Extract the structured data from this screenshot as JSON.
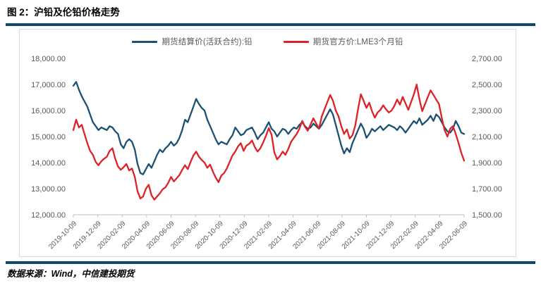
{
  "page": {
    "title": "图 2：沪铅及伦铅价格走势",
    "source_note": "数据来源：Wind，中信建投期货"
  },
  "colors": {
    "rule": "#14496F",
    "axis_text": "#595959",
    "axis_line": "#BFBFBF",
    "chart_border": "#D9D9D9",
    "series_left": "#1B5173",
    "series_right": "#DE2126"
  },
  "chart_data": {
    "type": "line",
    "title": "沪铅及伦铅价格走势",
    "grid": false,
    "legend_position": "top-center",
    "legend": [
      {
        "label": "期货结算价(活跃合约):铅",
        "color": "#1B5173",
        "axis": "left"
      },
      {
        "label": "期货官方价:LME3个月铅",
        "color": "#DE2126",
        "axis": "right"
      }
    ],
    "axes": {
      "y_left": {
        "min": 12000,
        "max": 18000,
        "step": 1000,
        "tick_labels": [
          "18,000.00",
          "17,000.00",
          "16,000.00",
          "15,000.00",
          "14,000.00",
          "13,000.00",
          "12,000.00"
        ]
      },
      "y_right": {
        "min": 1500,
        "max": 2700,
        "step": 200,
        "tick_labels": [
          "2,700.00",
          "2,500.00",
          "2,300.00",
          "2,100.00",
          "1,900.00",
          "1,700.00",
          "1,500.00"
        ]
      },
      "x": {
        "tick_labels": [
          "2019-10-09",
          "2019-12-09",
          "2020-02-09",
          "2020-04-09",
          "2020-06-09",
          "2020-08-09",
          "2020-10-09",
          "2020-12-09",
          "2021-02-09",
          "2021-04-09",
          "2021-06-09",
          "2021-08-09",
          "2021-10-09",
          "2021-12-09",
          "2022-02-09",
          "2022-04-09",
          "2022-06-09"
        ]
      }
    },
    "series": [
      {
        "name": "期货结算价(活跃合约):铅",
        "axis": "left",
        "color": "#1B5173",
        "values": [
          16950,
          17100,
          16800,
          16550,
          16350,
          16150,
          15850,
          15550,
          15400,
          15250,
          15350,
          15300,
          15250,
          15400,
          15350,
          15200,
          15100,
          14700,
          14550,
          14800,
          14900,
          14800,
          14500,
          13950,
          13600,
          13550,
          13750,
          13950,
          13800,
          14050,
          14300,
          14500,
          14400,
          14550,
          14650,
          14800,
          14650,
          14750,
          14950,
          15250,
          15650,
          15550,
          15850,
          16150,
          16450,
          16250,
          16100,
          16000,
          15650,
          15400,
          15150,
          14900,
          14700,
          14800,
          14750,
          14700,
          14900,
          15050,
          15350,
          15200,
          15050,
          15100,
          15250,
          15300,
          15350,
          15150,
          14900,
          15050,
          15150,
          15350,
          15550,
          15300,
          15200,
          15000,
          15150,
          15300,
          15250,
          15100,
          15250,
          15350,
          15300,
          15450,
          15550,
          15400,
          15300,
          15350,
          15500,
          15400,
          15300,
          15450,
          15650,
          15850,
          16050,
          15850,
          15450,
          15050,
          14650,
          14350,
          14550,
          14400,
          14750,
          15000,
          15250,
          15500,
          15300,
          14950,
          15100,
          15300,
          15200,
          15300,
          15400,
          15250,
          15350,
          15450,
          15400,
          15350,
          15250,
          15400,
          15300,
          15150,
          15300,
          15450,
          15600,
          15500,
          15700,
          15450,
          15550,
          15650,
          15800,
          15600,
          15850,
          15750,
          15550,
          15350,
          15200,
          15150,
          15300,
          15600,
          15400,
          15150,
          15100
        ]
      },
      {
        "name": "期货官方价:LME3个月铅",
        "axis": "right",
        "color": "#DE2126",
        "values": [
          2150,
          2230,
          2170,
          2190,
          2120,
          2050,
          1990,
          1960,
          1905,
          1880,
          1910,
          1930,
          1945,
          1990,
          2010,
          1930,
          1870,
          1845,
          1865,
          1890,
          1840,
          1855,
          1790,
          1680,
          1625,
          1640,
          1700,
          1730,
          1650,
          1615,
          1640,
          1665,
          1695,
          1710,
          1745,
          1790,
          1755,
          1780,
          1805,
          1845,
          1880,
          1850,
          1905,
          1955,
          1985,
          1945,
          1920,
          1900,
          1860,
          1885,
          1830,
          1785,
          1750,
          1800,
          1820,
          1855,
          1905,
          1955,
          1985,
          2025,
          2050,
          1990,
          2030,
          2045,
          2070,
          2020,
          1985,
          2010,
          2055,
          2105,
          2165,
          2115,
          1980,
          1925,
          1950,
          1985,
          1960,
          2005,
          2060,
          2090,
          2120,
          2160,
          2220,
          2175,
          2145,
          2195,
          2240,
          2200,
          2160,
          2255,
          2310,
          2365,
          2420,
          2375,
          2300,
          2255,
          2180,
          2120,
          2155,
          2085,
          2110,
          2185,
          2310,
          2425,
          2375,
          2320,
          2360,
          2295,
          2245,
          2285,
          2305,
          2340,
          2310,
          2285,
          2300,
          2335,
          2385,
          2345,
          2405,
          2355,
          2305,
          2365,
          2425,
          2500,
          2385,
          2295,
          2350,
          2405,
          2455,
          2420,
          2385,
          2350,
          2245,
          2150,
          2100,
          2160,
          2180,
          2120,
          2050,
          1975,
          1915
        ]
      }
    ]
  }
}
